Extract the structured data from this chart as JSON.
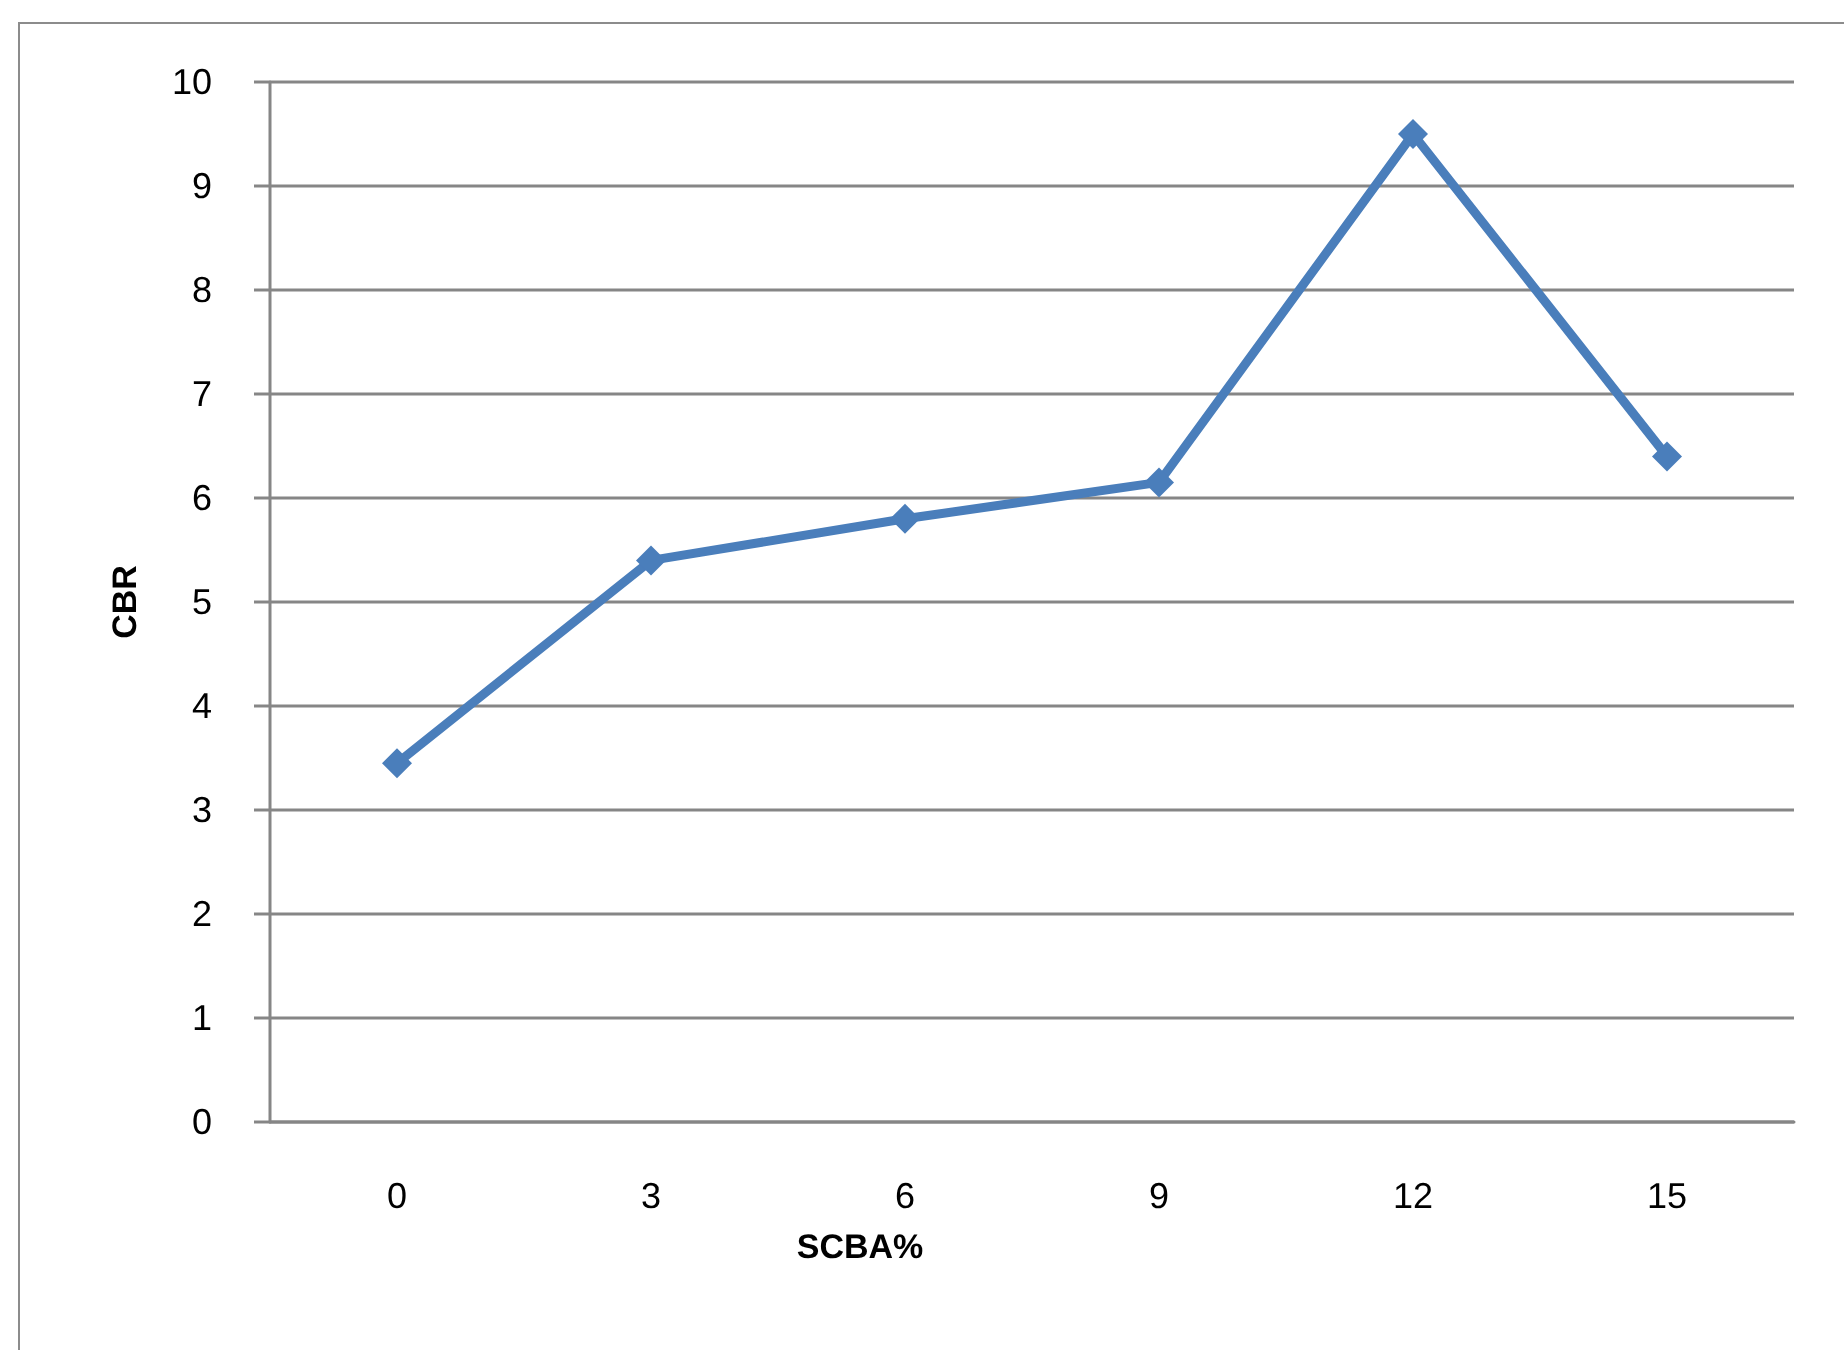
{
  "chart_data": {
    "type": "line",
    "xlabel": "SCBA%",
    "ylabel": "CBR",
    "categories": [
      "0",
      "3",
      "6",
      "9",
      "12",
      "15"
    ],
    "series": [
      {
        "color": "#4a7ebb",
        "values": [
          3.45,
          5.4,
          5.8,
          6.15,
          9.5,
          6.4
        ]
      }
    ],
    "ylim": [
      0,
      10
    ],
    "yticks": [
      0,
      1,
      2,
      3,
      4,
      5,
      6,
      7,
      8,
      9,
      10
    ],
    "grid": "y",
    "marker": "diamond",
    "line_style": "solid"
  }
}
